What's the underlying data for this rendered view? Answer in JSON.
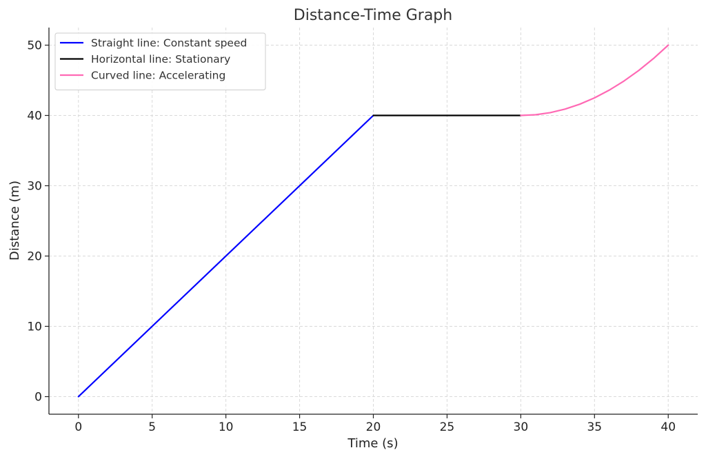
{
  "chart_data": {
    "type": "line",
    "title": "Distance-Time Graph",
    "xlabel": "Time (s)",
    "ylabel": "Distance (m)",
    "xlim": [
      -2,
      42
    ],
    "ylim": [
      -2.5,
      52.5
    ],
    "x_ticks": [
      0,
      5,
      10,
      15,
      20,
      25,
      30,
      35,
      40
    ],
    "y_ticks": [
      0,
      10,
      20,
      30,
      40,
      50
    ],
    "grid": true,
    "legend_position": "top-left",
    "series": [
      {
        "name": "Straight line: Constant speed",
        "color": "#0000ff",
        "points": [
          [
            0,
            0
          ],
          [
            20,
            40
          ]
        ]
      },
      {
        "name": "Horizontal line: Stationary",
        "color": "#000000",
        "points": [
          [
            20,
            40
          ],
          [
            30,
            40
          ]
        ]
      },
      {
        "name": "Curved line: Accelerating",
        "color": "#ff69b4",
        "points": [
          [
            30,
            40
          ],
          [
            31,
            40.1
          ],
          [
            32,
            40.4
          ],
          [
            33,
            40.9
          ],
          [
            34,
            41.6
          ],
          [
            35,
            42.5
          ],
          [
            36,
            43.6
          ],
          [
            37,
            44.9
          ],
          [
            38,
            46.4
          ],
          [
            39,
            48.1
          ],
          [
            40,
            50
          ]
        ]
      }
    ]
  }
}
